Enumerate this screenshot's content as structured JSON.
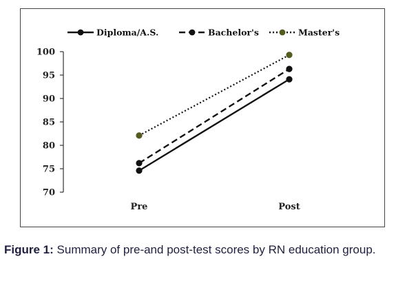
{
  "figure": {
    "caption_label": "Figure 1:",
    "caption_text": " Summary of pre-and post-test scores by RN education group."
  },
  "colors": {
    "series_line": "#111111",
    "masters_marker": "#555a1e",
    "axis": "#333333"
  },
  "chart_data": {
    "type": "line",
    "categories": [
      "Pre",
      "Post"
    ],
    "series": [
      {
        "name": "Diploma/A.S.",
        "values": [
          74.6,
          94.1
        ],
        "style": "solid"
      },
      {
        "name": "Bachelor's",
        "values": [
          76.2,
          96.3
        ],
        "style": "dashed"
      },
      {
        "name": "Master's",
        "values": [
          82.1,
          99.3
        ],
        "style": "dotted"
      }
    ],
    "yticks": [
      "70",
      "75",
      "80",
      "85",
      "90",
      "95",
      "100"
    ],
    "ylim": [
      70,
      100
    ],
    "xlabel": "",
    "ylabel": "",
    "title": "",
    "grid": false,
    "legend": "top"
  }
}
